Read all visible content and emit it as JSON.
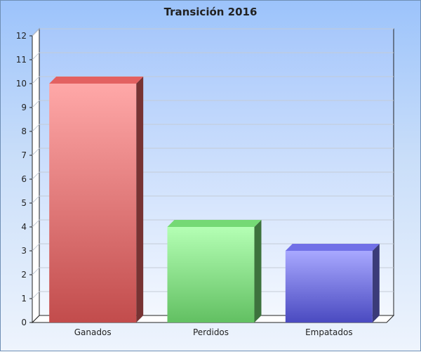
{
  "chart_data": {
    "type": "bar",
    "title": "Transición 2016",
    "xlabel": "",
    "ylabel": "",
    "categories": [
      "Ganados",
      "Perdidos",
      "Empatados"
    ],
    "values": [
      10,
      4,
      3
    ],
    "ylim": [
      0,
      12
    ],
    "yticks": [
      "0",
      "1",
      "2",
      "3",
      "4",
      "5",
      "6",
      "7",
      "8",
      "9",
      "10",
      "11",
      "12"
    ],
    "grid": true,
    "legend": "none",
    "colors": [
      "#d85c5c",
      "#6fcf6f",
      "#6b6bdc"
    ]
  }
}
